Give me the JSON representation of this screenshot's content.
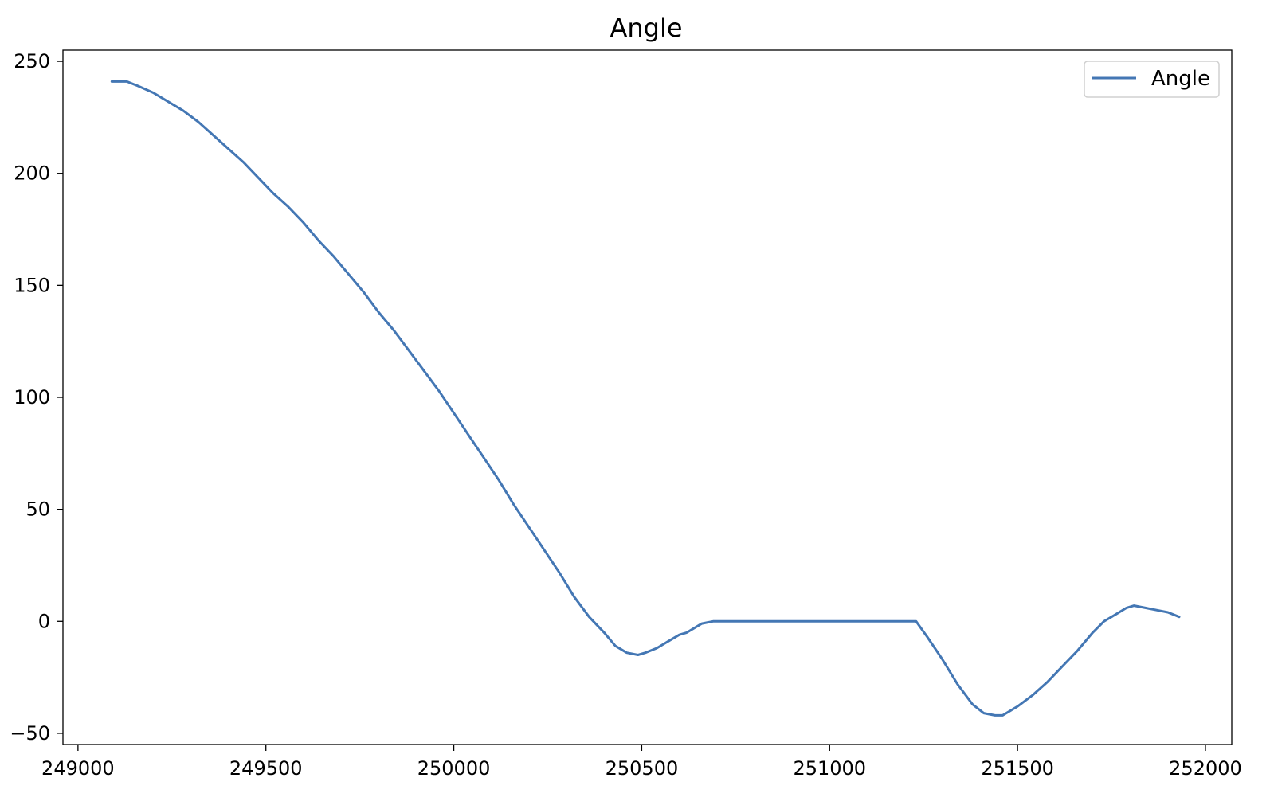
{
  "chart_data": {
    "type": "line",
    "title": "Angle",
    "xlabel": "",
    "ylabel": "",
    "xlim": [
      248960,
      252070
    ],
    "ylim": [
      -55,
      255
    ],
    "x_ticks": [
      249000,
      249500,
      250000,
      250500,
      251000,
      251500,
      252000
    ],
    "x_tick_labels": [
      "249000",
      "249500",
      "250000",
      "250500",
      "251000",
      "251500",
      "252000"
    ],
    "y_ticks": [
      -50,
      0,
      50,
      100,
      150,
      200,
      250
    ],
    "y_tick_labels": [
      "−50",
      "0",
      "50",
      "100",
      "150",
      "200",
      "250"
    ],
    "grid": false,
    "legend": {
      "position": "top-right",
      "entries": [
        "Angle"
      ]
    },
    "series": [
      {
        "name": "Angle",
        "color": "#4477b4",
        "x": [
          249090,
          249130,
          249160,
          249200,
          249240,
          249280,
          249320,
          249360,
          249400,
          249440,
          249480,
          249520,
          249560,
          249600,
          249640,
          249680,
          249720,
          249760,
          249800,
          249840,
          249880,
          249920,
          249960,
          250000,
          250040,
          250080,
          250120,
          250160,
          250200,
          250240,
          250280,
          250320,
          250360,
          250400,
          250430,
          250460,
          250490,
          250510,
          250540,
          250570,
          250600,
          250620,
          250640,
          250660,
          250690,
          250750,
          250850,
          250950,
          251050,
          251150,
          251230,
          251260,
          251300,
          251340,
          251380,
          251410,
          251440,
          251460,
          251500,
          251540,
          251580,
          251620,
          251660,
          251700,
          251730,
          251760,
          251790,
          251810,
          251840,
          251870,
          251900,
          251930
        ],
        "y": [
          241,
          241,
          239,
          236,
          232,
          228,
          223,
          217,
          211,
          205,
          198,
          191,
          185,
          178,
          170,
          163,
          155,
          147,
          138,
          130,
          121,
          112,
          103,
          93,
          83,
          73,
          63,
          52,
          42,
          32,
          22,
          11,
          2,
          -5,
          -11,
          -14,
          -15,
          -14,
          -12,
          -9,
          -6,
          -5,
          -3,
          -1,
          0,
          0,
          0,
          0,
          0,
          0,
          0,
          -7,
          -17,
          -28,
          -37,
          -41,
          -42,
          -42,
          -38,
          -33,
          -27,
          -20,
          -13,
          -5,
          0,
          3,
          6,
          7,
          6,
          5,
          4,
          2
        ]
      }
    ]
  }
}
